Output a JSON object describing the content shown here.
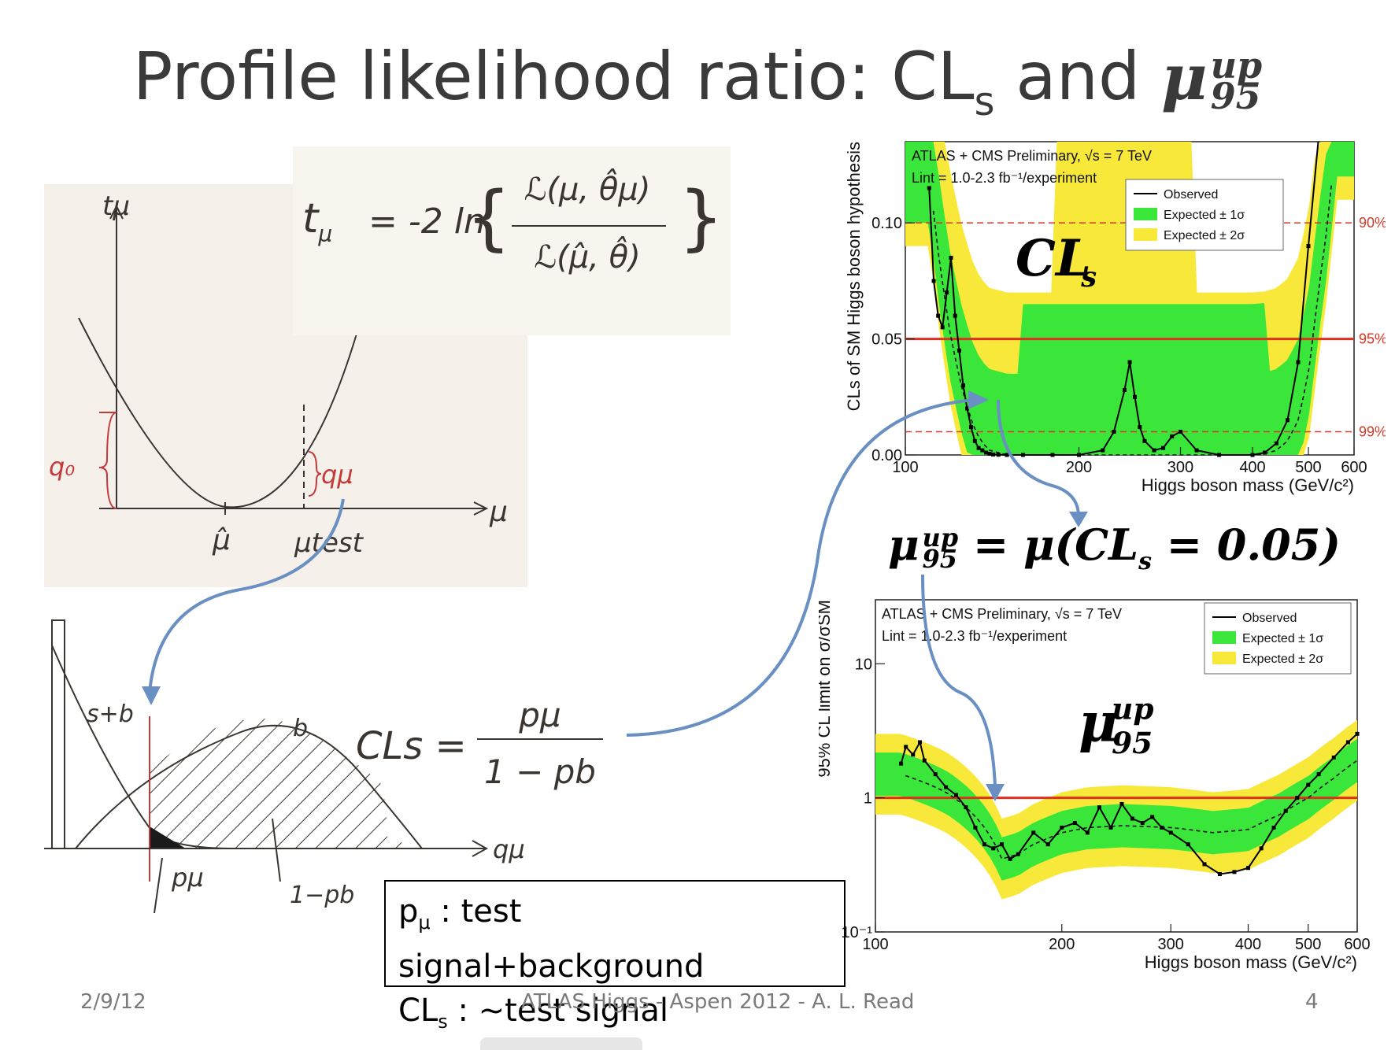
{
  "slide": {
    "title_main": "Profile likelihood ratio: CL",
    "title_sub": "s",
    "title_and": " and ",
    "title_mu": "μ",
    "title_mu_sup": "up",
    "title_mu_sub": "95"
  },
  "sketch_top": {
    "formula_lhs": "t",
    "formula_lhs_sub": "μ",
    "formula_eq": "= -2 ln",
    "formula_num": "ℒ(μ, θ̂μ)",
    "formula_den": "ℒ(μ̂, θ̂)",
    "axis_y": "tμ",
    "axis_x": "μ",
    "label_q0": "q₀",
    "label_qmu": "qμ",
    "label_muhat": "μ̂",
    "label_mutest": "μtest"
  },
  "sketch_bottom": {
    "label_sb": "s+b",
    "label_b": "b",
    "label_pmu": "pμ",
    "label_1pb": "1−pb",
    "axis_x": "qμ",
    "cls_lhs": "CLs =",
    "cls_num": "pμ",
    "cls_den": "1 − pb"
  },
  "note": {
    "line1_p": "p",
    "line1_sub": "μ",
    "line1_rest": " : test signal+background",
    "line2_cl": "CL",
    "line2_sub": "s",
    "line2_rest": " : ~test signal"
  },
  "mu_formula": {
    "lhs": "μ",
    "lhs_sup": "up",
    "lhs_sub": "95",
    "rhs": "= μ(CL",
    "rhs_sub": "s",
    "rhs_end": " = 0.05)"
  },
  "chart_data": [
    {
      "type": "line",
      "header1": "ATLAS + CMS Preliminary, √s = 7 TeV",
      "header2": "Lint = 1.0-2.3 fb⁻¹/experiment",
      "big_label": "CL",
      "big_label_sub": "s",
      "xlabel": "Higgs boson mass (GeV/c²)",
      "ylabel": "CLs of SM Higgs boson hypothesis",
      "xscale": "log",
      "xlim": [
        100,
        600
      ],
      "ylim": [
        0,
        0.135
      ],
      "xticks": [
        100,
        200,
        300,
        400,
        500,
        600
      ],
      "yticks": [
        0.0,
        0.05,
        0.1
      ],
      "ytick_labels": [
        "0.00",
        "0.05",
        "0.10"
      ],
      "reference_lines": [
        {
          "y": 0.1,
          "label": "90%",
          "style": "dashed",
          "color": "#d23a2a"
        },
        {
          "y": 0.05,
          "label": "95%",
          "style": "solid",
          "color": "#e03020"
        },
        {
          "y": 0.01,
          "label": "99%",
          "style": "dashed",
          "color": "#d23a2a"
        }
      ],
      "legend": [
        "Observed",
        "Expected ± 1σ",
        "Expected ± 2σ"
      ],
      "legend_position": "top-right",
      "colors": {
        "band1": "#39e639",
        "band2": "#f7e83a",
        "observed": "#000000"
      },
      "series": [
        {
          "name": "Observed",
          "x": [
            110,
            112,
            114,
            116,
            118,
            120,
            122,
            124,
            126,
            128,
            130,
            132,
            134,
            136,
            138,
            140,
            142,
            145,
            150,
            160,
            180,
            200,
            220,
            230,
            240,
            245,
            250,
            255,
            260,
            270,
            280,
            290,
            300,
            320,
            350,
            400,
            420,
            440,
            460,
            480,
            500,
            520
          ],
          "y": [
            0.115,
            0.075,
            0.06,
            0.055,
            0.07,
            0.085,
            0.06,
            0.045,
            0.03,
            0.02,
            0.012,
            0.006,
            0.003,
            0.002,
            0.001,
            0.0005,
            0.0002,
            0.0001,
            0.0,
            0.0,
            0.0,
            0.0,
            0.002,
            0.01,
            0.028,
            0.04,
            0.025,
            0.012,
            0.006,
            0.002,
            0.003,
            0.008,
            0.01,
            0.002,
            0.0,
            0.0,
            0.001,
            0.005,
            0.015,
            0.04,
            0.09,
            0.15
          ]
        },
        {
          "name": "Expected",
          "x": [
            110,
            115,
            120,
            125,
            130,
            135,
            140,
            150,
            170,
            200,
            300,
            400,
            420,
            440,
            460,
            480,
            500,
            520,
            540,
            560
          ],
          "y": [
            0.12,
            0.08,
            0.05,
            0.03,
            0.015,
            0.006,
            0.002,
            0.0,
            0.0,
            0.0,
            0.0,
            0.0,
            0.0005,
            0.002,
            0.006,
            0.015,
            0.035,
            0.07,
            0.1,
            0.14
          ]
        }
      ]
    },
    {
      "type": "line",
      "header1": "ATLAS + CMS Preliminary, √s = 7 TeV",
      "header2": "Lint = 1.0-2.3 fb⁻¹/experiment",
      "big_label": "μ",
      "big_label_sup": "up",
      "big_label_sub": "95",
      "xlabel": "Higgs boson mass (GeV/c²)",
      "ylabel": "95% CL limit on σ/σSM",
      "xscale": "log",
      "yscale": "log",
      "xlim": [
        100,
        600
      ],
      "ylim": [
        0.1,
        30
      ],
      "xticks": [
        100,
        200,
        300,
        400,
        500,
        600
      ],
      "yticks": [
        0.1,
        1,
        10
      ],
      "ytick_labels": [
        "10⁻¹",
        "1",
        "10"
      ],
      "reference_lines": [
        {
          "y": 1,
          "style": "solid",
          "color": "#e03020"
        }
      ],
      "legend": [
        "Observed",
        "Expected ± 1σ",
        "Expected ± 2σ"
      ],
      "legend_position": "top-right",
      "colors": {
        "band1": "#39e639",
        "band2": "#f7e83a",
        "observed": "#000000"
      },
      "series": [
        {
          "name": "Observed",
          "x": [
            110,
            112,
            115,
            118,
            120,
            125,
            130,
            135,
            140,
            145,
            150,
            155,
            160,
            165,
            170,
            180,
            190,
            200,
            210,
            220,
            230,
            240,
            250,
            260,
            270,
            280,
            290,
            300,
            320,
            340,
            360,
            380,
            400,
            420,
            440,
            460,
            480,
            500,
            520,
            550,
            580,
            600
          ],
          "y": [
            1.8,
            2.4,
            2.1,
            2.6,
            1.9,
            1.5,
            1.2,
            1.05,
            0.85,
            0.6,
            0.45,
            0.42,
            0.45,
            0.35,
            0.38,
            0.55,
            0.45,
            0.6,
            0.65,
            0.55,
            0.85,
            0.6,
            0.9,
            0.7,
            0.65,
            0.72,
            0.6,
            0.55,
            0.45,
            0.32,
            0.27,
            0.28,
            0.3,
            0.42,
            0.6,
            0.8,
            1.0,
            1.25,
            1.5,
            2.0,
            2.6,
            3.0
          ]
        },
        {
          "name": "Expected",
          "x": [
            110,
            120,
            130,
            140,
            150,
            160,
            170,
            180,
            200,
            220,
            250,
            300,
            350,
            400,
            450,
            500,
            550,
            600
          ],
          "y": [
            1.5,
            1.3,
            1.1,
            0.85,
            0.6,
            0.35,
            0.38,
            0.45,
            0.55,
            0.6,
            0.62,
            0.6,
            0.55,
            0.58,
            0.75,
            1.0,
            1.4,
            1.9
          ]
        }
      ]
    }
  ],
  "footer": {
    "date": "2/9/12",
    "center": "ATLAS Higgs - Aspen 2012 - A. L. Read",
    "page": "4"
  }
}
